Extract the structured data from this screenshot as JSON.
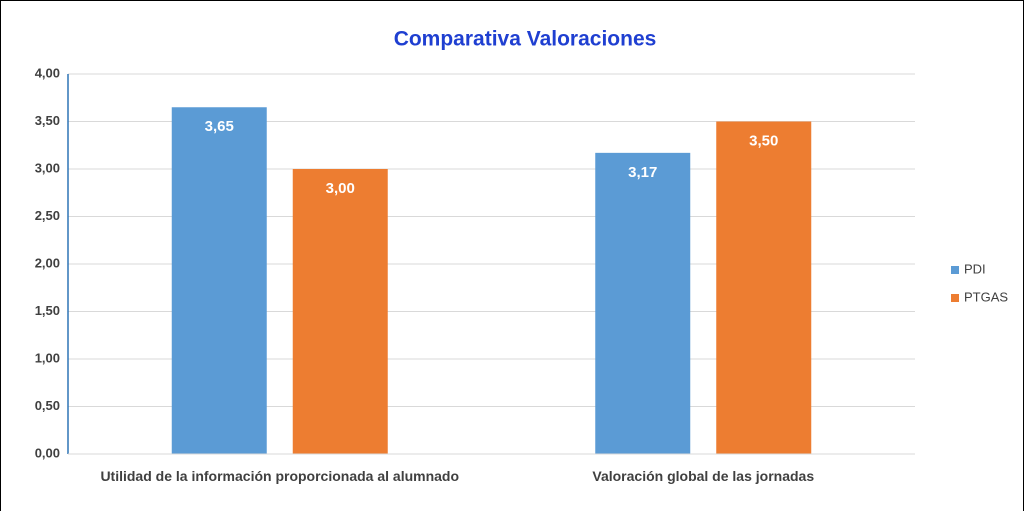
{
  "chart_data": {
    "type": "bar",
    "title": "Comparativa Valoraciones",
    "categories": [
      "Utilidad de la información proporcionada al alumnado",
      "Valoración global de las jornadas"
    ],
    "series": [
      {
        "name": "PDI",
        "color": "#5b9bd5",
        "values": [
          3.65,
          3.17
        ],
        "value_labels": [
          "3,65",
          "3,17"
        ]
      },
      {
        "name": "PTGAS",
        "color": "#ed7d31",
        "values": [
          3.0,
          3.5
        ],
        "value_labels": [
          "3,00",
          "3,50"
        ]
      }
    ],
    "ylim": [
      0,
      4
    ],
    "yticks": [
      {
        "value": 0,
        "label": "0,00"
      },
      {
        "value": 0.5,
        "label": "0,50"
      },
      {
        "value": 1,
        "label": "1,00"
      },
      {
        "value": 1.5,
        "label": "1,50"
      },
      {
        "value": 2,
        "label": "2,00"
      },
      {
        "value": 2.5,
        "label": "2,50"
      },
      {
        "value": 3,
        "label": "3,00"
      },
      {
        "value": 3.5,
        "label": "3,50"
      },
      {
        "value": 4,
        "label": "4,00"
      }
    ],
    "grid": true,
    "legend": "right"
  }
}
